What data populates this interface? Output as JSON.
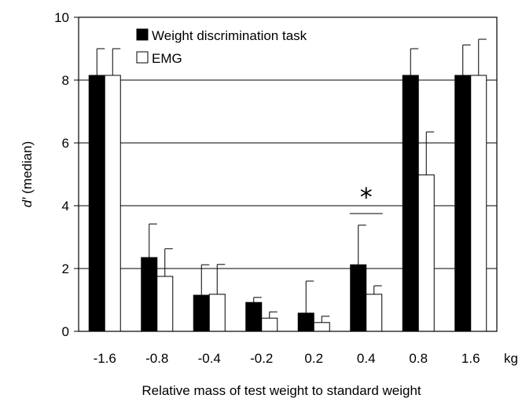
{
  "chart_data": {
    "type": "bar",
    "categories": [
      "-1.6",
      "-0.8",
      "-0.4",
      "-0.2",
      "0.2",
      "0.4",
      "0.8",
      "1.6"
    ],
    "x_unit": "kg",
    "series": [
      {
        "name": "Weight discrimination task",
        "color": "#000000",
        "values": [
          8.15,
          2.35,
          1.15,
          0.92,
          0.58,
          2.12,
          8.15,
          8.15
        ],
        "error_upper": [
          9.0,
          3.42,
          2.12,
          1.08,
          1.6,
          3.38,
          9.0,
          9.12
        ]
      },
      {
        "name": "EMG",
        "color": "#ffffff",
        "values": [
          8.15,
          1.75,
          1.18,
          0.42,
          0.28,
          1.18,
          4.98,
          8.15
        ],
        "error_upper": [
          9.0,
          2.63,
          2.13,
          0.62,
          0.48,
          1.45,
          6.35,
          9.3
        ]
      }
    ],
    "ylabel_symbol": "d′",
    "ylabel_suffix": "(median)",
    "xlabel": "Relative mass of test weight to standard weight",
    "ylim": [
      0,
      10
    ],
    "yticks": [
      "0",
      "2",
      "4",
      "6",
      "8",
      "10"
    ],
    "grid": "horizontal",
    "legend_position": "top-left",
    "annotations": [
      {
        "text": "*",
        "category": "0.4",
        "y": 4.35
      }
    ]
  }
}
